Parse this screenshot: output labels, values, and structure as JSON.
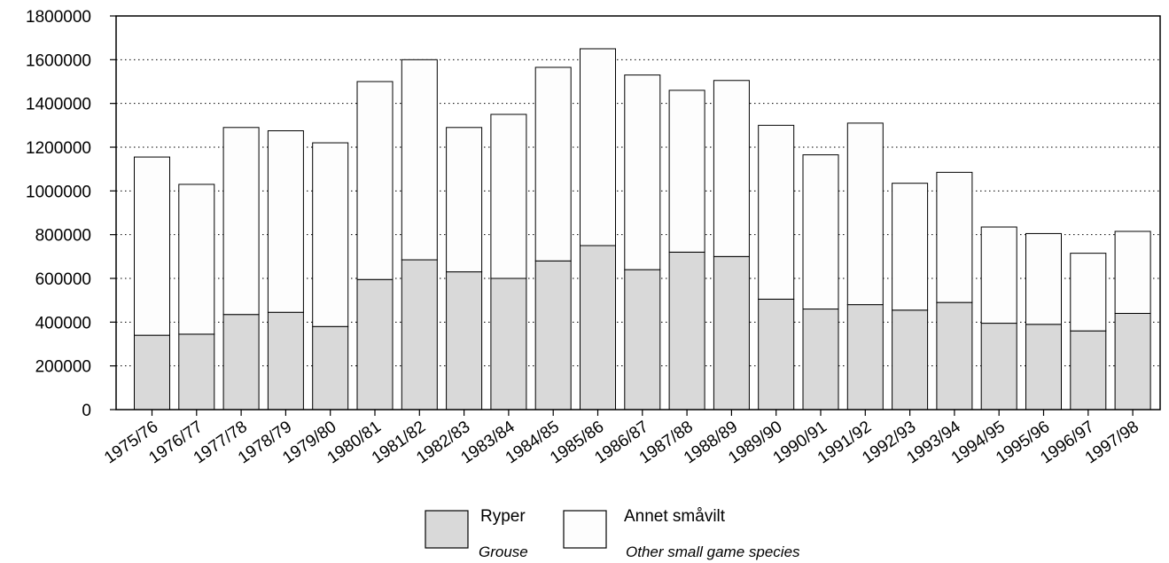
{
  "chart_data": {
    "type": "bar",
    "stacked": true,
    "categories": [
      "1975/76",
      "1976/77",
      "1977/78",
      "1978/79",
      "1979/80",
      "1980/81",
      "1981/82",
      "1982/83",
      "1983/84",
      "1984/85",
      "1985/86",
      "1986/87",
      "1987/88",
      "1988/89",
      "1989/90",
      "1990/91",
      "1991/92",
      "1992/93",
      "1993/94",
      "1994/95",
      "1995/96",
      "1996/97",
      "1997/98"
    ],
    "series": [
      {
        "name": "Ryper",
        "subtitle": "Grouse",
        "color": "#d9d9d9",
        "values": [
          340000,
          345000,
          435000,
          445000,
          380000,
          595000,
          685000,
          630000,
          600000,
          680000,
          750000,
          640000,
          720000,
          700000,
          505000,
          460000,
          480000,
          455000,
          490000,
          395000,
          390000,
          360000,
          440000
        ]
      },
      {
        "name": "Annet småvilt",
        "subtitle": "Other small game species",
        "color": "#fdfdfd",
        "values": [
          815000,
          685000,
          855000,
          830000,
          840000,
          905000,
          915000,
          660000,
          750000,
          885000,
          900000,
          890000,
          740000,
          805000,
          795000,
          705000,
          830000,
          580000,
          595000,
          440000,
          415000,
          355000,
          375000
        ]
      }
    ],
    "y_ticks": [
      "0",
      "200000",
      "400000",
      "600000",
      "800000",
      "1000000",
      "1200000",
      "1400000",
      "1600000",
      "1800000"
    ],
    "ylim": [
      0,
      1800000
    ],
    "grid": "horizontal dotted",
    "legend_position": "bottom-center"
  }
}
